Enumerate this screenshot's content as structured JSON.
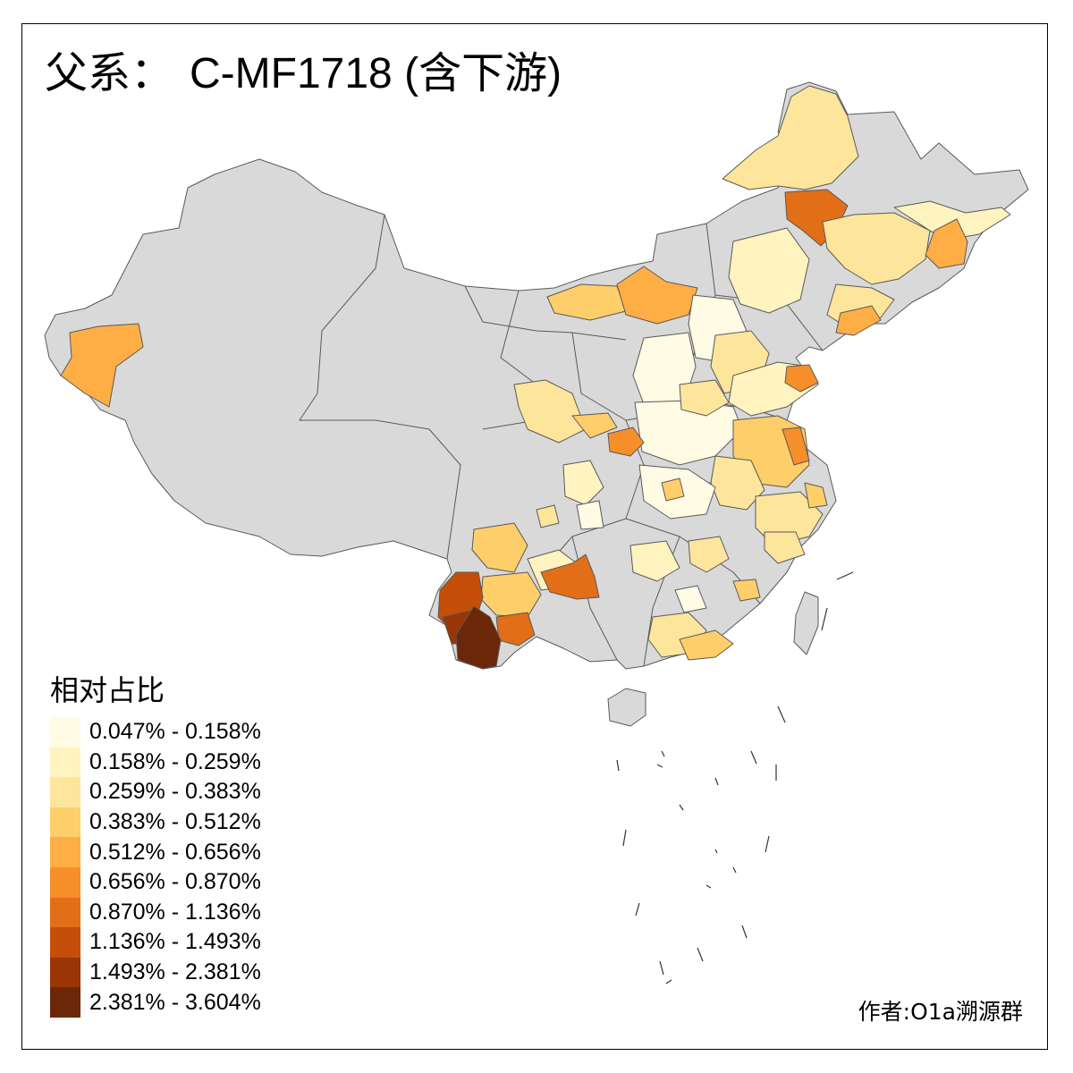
{
  "title": {
    "prefix": "父系：",
    "haplogroup": "C-MF1718 (含下游)"
  },
  "legend": {
    "title": "相对占比",
    "classes": [
      {
        "label": "0.047% - 0.158%",
        "color": "#fffbe5"
      },
      {
        "label": "0.158% - 0.259%",
        "color": "#fff3c0"
      },
      {
        "label": "0.259% - 0.383%",
        "color": "#fee59c"
      },
      {
        "label": "0.383% - 0.512%",
        "color": "#fece6a"
      },
      {
        "label": "0.512% - 0.656%",
        "color": "#feae44"
      },
      {
        "label": "0.656% - 0.870%",
        "color": "#f68f2a"
      },
      {
        "label": "0.870% - 1.136%",
        "color": "#e36e18"
      },
      {
        "label": "1.136% - 1.493%",
        "color": "#c54e08"
      },
      {
        "label": "1.493% - 2.381%",
        "color": "#9a3505"
      },
      {
        "label": "2.381% - 3.604%",
        "color": "#6c2708"
      }
    ]
  },
  "credit": "作者:O1a溯源群",
  "colors": {
    "no_data": "#d9d9d9",
    "border": "#595959",
    "frame": "#000000"
  }
}
